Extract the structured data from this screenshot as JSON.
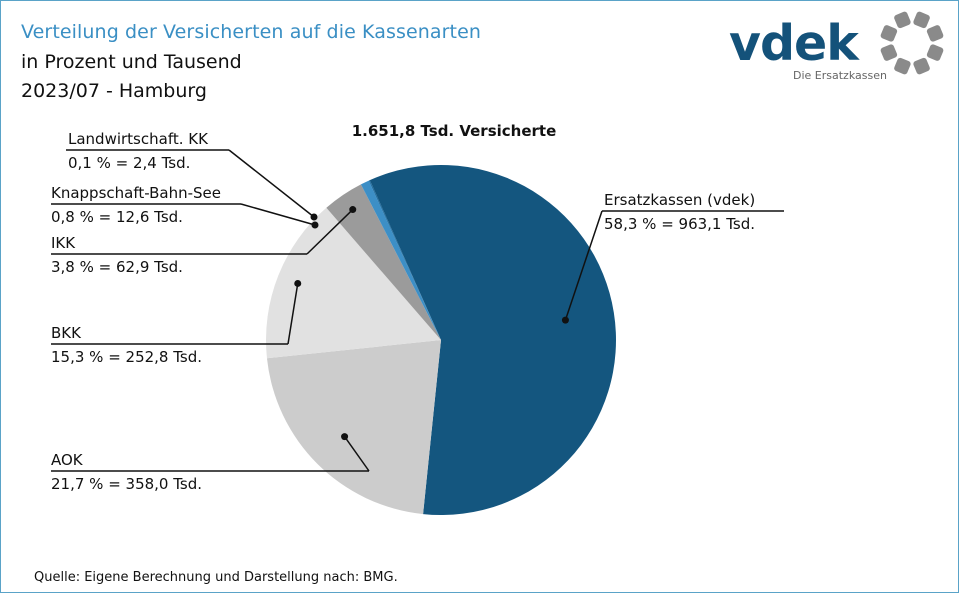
{
  "header": {
    "title": "Verteilung der Versicherten auf die Kassenarten",
    "subtitle_line1": "in Prozent und Tausend",
    "subtitle_line2": "2023/07 - Hamburg"
  },
  "logo": {
    "wordmark": "vdek",
    "tagline": "Die Ersatzkassen",
    "color": "#14527a",
    "ring_color": "#8a8a8a"
  },
  "footer": {
    "source": "Quelle: Eigene Berechnung und Darstellung nach: BMG."
  },
  "chart_data": {
    "type": "pie",
    "title": "1.651,8 Tsd. Versicherte",
    "total_thousands": 1651.8,
    "unit": "Tsd.",
    "start_angle_deg": -24,
    "direction": "clockwise",
    "slices": [
      {
        "name": "Ersatzkassen (vdek)",
        "percent": 58.3,
        "value": 963.1,
        "value_label": "58,3 % = 963,1 Tsd.",
        "color": "#14567f"
      },
      {
        "name": "AOK",
        "percent": 21.7,
        "value": 358.0,
        "value_label": "21,7 % = 358,0 Tsd.",
        "color": "#cccccc"
      },
      {
        "name": "BKK",
        "percent": 15.3,
        "value": 252.8,
        "value_label": "15,3 % = 252,8 Tsd.",
        "color": "#e1e1e1"
      },
      {
        "name": "IKK",
        "percent": 3.8,
        "value": 62.9,
        "value_label": "3,8 % = 62,9 Tsd.",
        "color": "#9b9b9b"
      },
      {
        "name": "Knappschaft-Bahn-See",
        "percent": 0.8,
        "value": 12.6,
        "value_label": "0,8 % = 12,6 Tsd.",
        "color": "#3d8fc6"
      },
      {
        "name": "Landwirtschaft. KK",
        "percent": 0.1,
        "value": 2.4,
        "value_label": "0,1 % = 2,4 Tsd.",
        "color": "#1d6a9c"
      }
    ]
  }
}
